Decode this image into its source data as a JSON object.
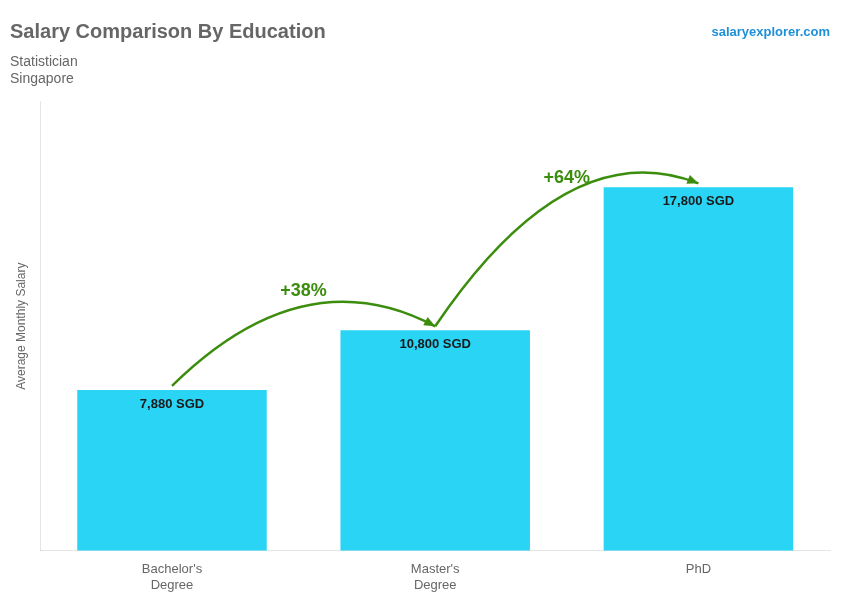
{
  "chart_data": {
    "type": "bar",
    "title": "Salary Comparison By Education",
    "subtitle": [
      "Statistician",
      "Singapore"
    ],
    "y_label": "Average Monthly Salary",
    "categories": [
      "Bachelor's\nDegree",
      "Master's\nDegree",
      "PhD"
    ],
    "values": [
      7880,
      10800,
      17800
    ],
    "value_labels": [
      "7,880 SGD",
      "10,800 SGD",
      "17,800 SGD"
    ],
    "data_labels": true,
    "color": "#29d4f5",
    "ylim": [
      0,
      22000
    ],
    "grid": false,
    "tick_labels": "x",
    "annotations": [
      {
        "text": "+38%",
        "from": 0,
        "to": 1
      },
      {
        "text": "+64%",
        "from": 1,
        "to": 2
      },
      {
        "text": "salaryexplorer.com"
      }
    ]
  }
}
